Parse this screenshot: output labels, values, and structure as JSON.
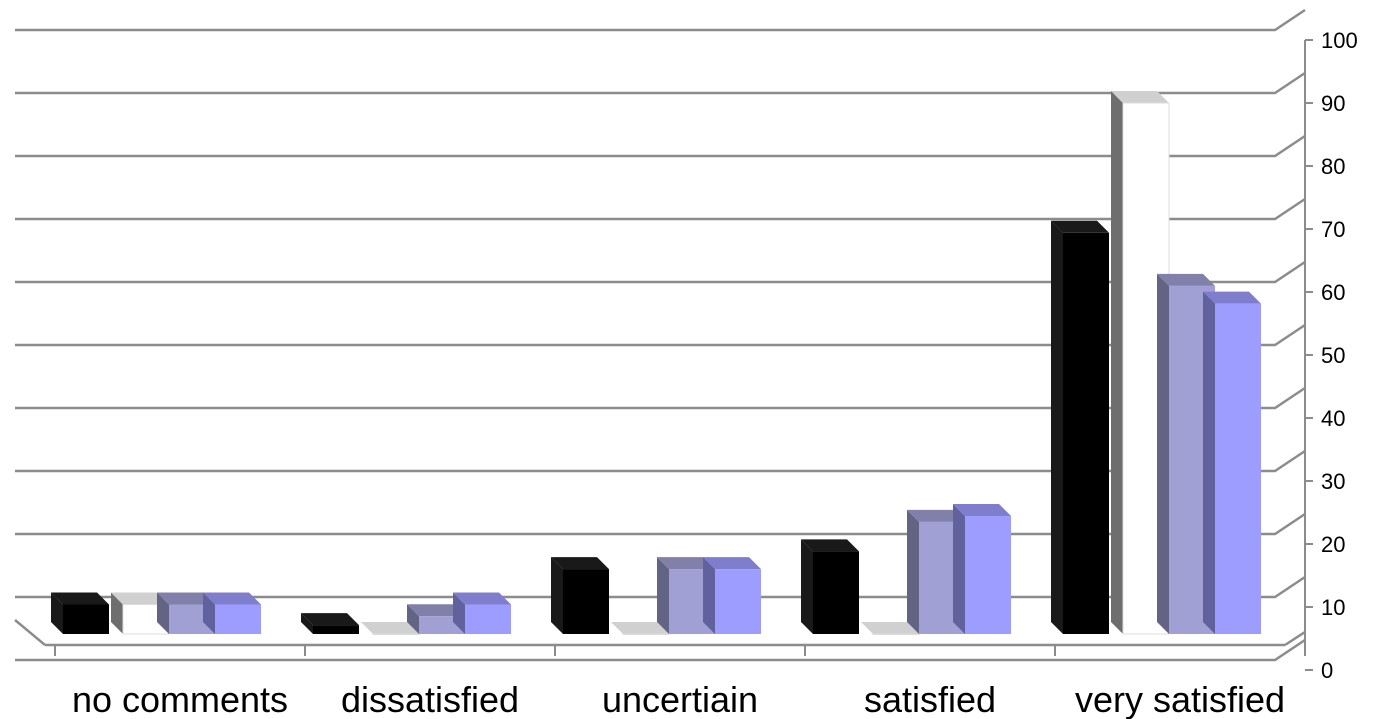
{
  "chart_data": {
    "type": "bar",
    "style": "3d-clustered-column",
    "categories": [
      "no comments",
      "dissatisfied",
      "uncertiain",
      "satisfied",
      "very satisfied"
    ],
    "series": [
      {
        "values": [
          5,
          1.5,
          11,
          14,
          68
        ],
        "color": "#000000"
      },
      {
        "values": [
          5,
          0,
          0,
          0,
          90
        ],
        "color": "#ffffff"
      },
      {
        "values": [
          5,
          3,
          11,
          19,
          59
        ],
        "color": "#a0a0d4"
      },
      {
        "values": [
          5,
          5,
          11,
          20,
          56
        ],
        "color": "#9d9dff"
      }
    ],
    "y_ticks": [
      "0",
      "10",
      "20",
      "30",
      "40",
      "50",
      "60",
      "70",
      "80",
      "90",
      "100"
    ],
    "ylim": [
      0,
      100
    ],
    "gridlines": true,
    "legend": false
  }
}
